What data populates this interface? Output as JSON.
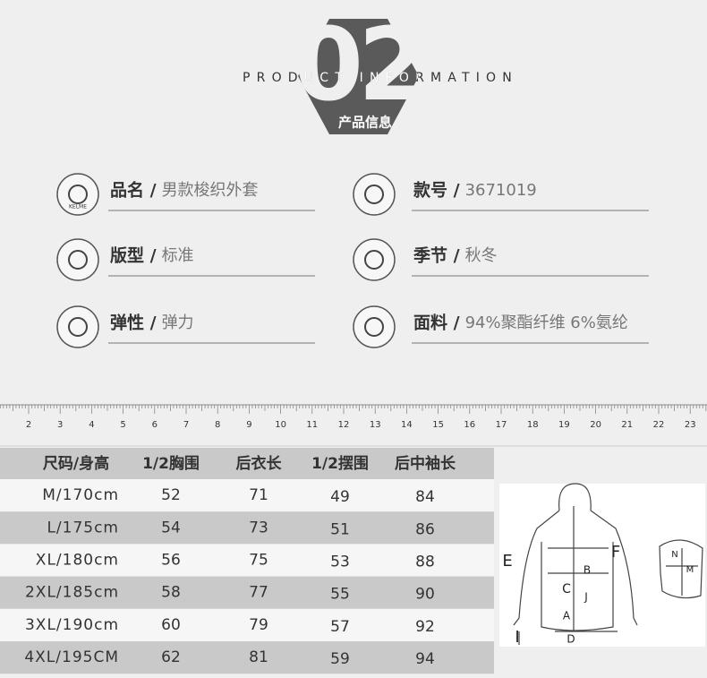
{
  "header": {
    "number": "02",
    "title": "PRODUCT INFORMATION",
    "subtitle": "产品信息"
  },
  "logo": "KELME",
  "attributes": [
    {
      "label": "品名 /",
      "value": "男款梭织外套"
    },
    {
      "label": "款号 /",
      "value": "3671019"
    },
    {
      "label": "版型 /",
      "value": "标准"
    },
    {
      "label": "季节 /",
      "value": "秋冬"
    },
    {
      "label": "弹性 /",
      "value": "弹力"
    },
    {
      "label": "面料 /",
      "value": "94%聚酯纤维 6%氨纶"
    }
  ],
  "ruler": [
    2,
    3,
    4,
    5,
    6,
    7,
    8,
    9,
    10,
    11,
    12,
    13,
    14,
    15,
    16,
    17,
    18,
    19,
    20,
    21,
    22,
    23
  ],
  "size_table": {
    "header": [
      "尺码/身高",
      "1/2胸围",
      "后衣长",
      "1/2摆围",
      "后中袖长"
    ],
    "rows": [
      [
        "M/170cm",
        52,
        71,
        49,
        84
      ],
      [
        "L/175cm",
        54,
        73,
        51,
        86
      ],
      [
        "XL/180cm",
        56,
        75,
        53,
        88
      ],
      [
        "2XL/185cm",
        58,
        77,
        55,
        90
      ],
      [
        "3XL/190cm",
        60,
        79,
        57,
        92
      ],
      [
        "4XL/195CM",
        62,
        81,
        59,
        94
      ]
    ]
  },
  "diagram": {
    "labels": [
      "E",
      "F",
      "B",
      "C",
      "J",
      "A",
      "D",
      "I",
      "N",
      "M"
    ]
  }
}
